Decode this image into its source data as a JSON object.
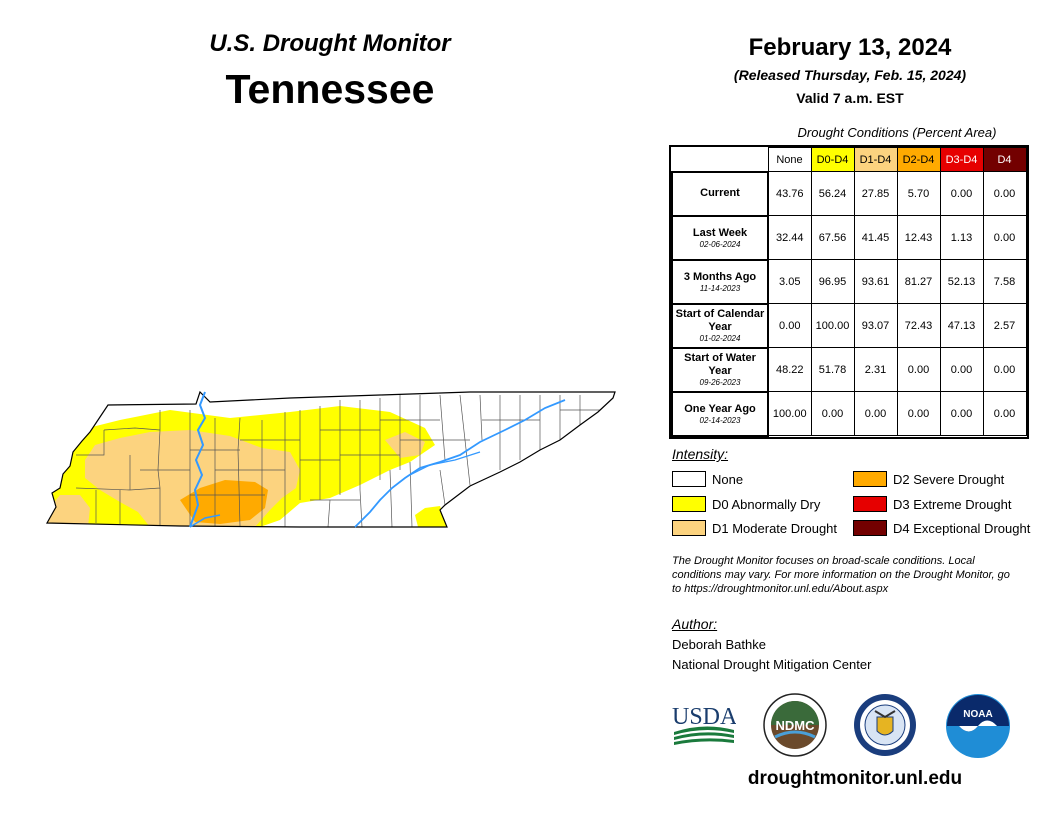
{
  "header": {
    "subtitle": "U.S. Drought Monitor",
    "state": "Tennessee",
    "date": "February 13, 2024",
    "released": "(Released Thursday, Feb. 15, 2024)",
    "valid": "Valid 7 a.m. EST"
  },
  "table": {
    "title": "Drought Conditions (Percent Area)",
    "columns": [
      {
        "label": "None",
        "color": "#ffffff",
        "text_color": "#000000"
      },
      {
        "label": "D0-D4",
        "color": "#ffff00",
        "text_color": "#000000"
      },
      {
        "label": "D1-D4",
        "color": "#fcd37f",
        "text_color": "#000000"
      },
      {
        "label": "D2-D4",
        "color": "#ffaa00",
        "text_color": "#000000"
      },
      {
        "label": "D3-D4",
        "color": "#e60000",
        "text_color": "#ffffff"
      },
      {
        "label": "D4",
        "color": "#730000",
        "text_color": "#ffffff"
      }
    ],
    "rows": [
      {
        "label": "Current",
        "date": "",
        "values": [
          "43.76",
          "56.24",
          "27.85",
          "5.70",
          "0.00",
          "0.00"
        ]
      },
      {
        "label": "Last Week",
        "date": "02-06-2024",
        "values": [
          "32.44",
          "67.56",
          "41.45",
          "12.43",
          "1.13",
          "0.00"
        ]
      },
      {
        "label": "3 Months Ago",
        "date": "11-14-2023",
        "values": [
          "3.05",
          "96.95",
          "93.61",
          "81.27",
          "52.13",
          "7.58"
        ]
      },
      {
        "label": "Start of Calendar Year",
        "date": "01-02-2024",
        "values": [
          "0.00",
          "100.00",
          "93.07",
          "72.43",
          "47.13",
          "2.57"
        ]
      },
      {
        "label": "Start of Water Year",
        "date": "09-26-2023",
        "values": [
          "48.22",
          "51.78",
          "2.31",
          "0.00",
          "0.00",
          "0.00"
        ]
      },
      {
        "label": "One Year Ago",
        "date": "02-14-2023",
        "values": [
          "100.00",
          "0.00",
          "0.00",
          "0.00",
          "0.00",
          "0.00"
        ]
      }
    ]
  },
  "legend": {
    "title": "Intensity:",
    "items": [
      {
        "label": "None",
        "color": "#ffffff"
      },
      {
        "label": "D0 Abnormally Dry",
        "color": "#ffff00"
      },
      {
        "label": "D1 Moderate Drought",
        "color": "#fcd37f"
      },
      {
        "label": "D2 Severe Drought",
        "color": "#ffaa00"
      },
      {
        "label": "D3 Extreme Drought",
        "color": "#e60000"
      },
      {
        "label": "D4 Exceptional Drought",
        "color": "#730000"
      }
    ]
  },
  "note": "The Drought Monitor focuses on broad-scale conditions. Local conditions may vary. For more information on the Drought Monitor, go to https://droughtmonitor.unl.edu/About.aspx",
  "author": {
    "title": "Author:",
    "name": "Deborah Bathke",
    "org": "National Drought Mitigation Center"
  },
  "logos": {
    "usda": "USDA",
    "ndmc": "NDMC",
    "noaa": "NOAA"
  },
  "url": "droughtmonitor.unl.edu",
  "colors": {
    "river": "#3399ff",
    "county_line": "#555555"
  }
}
